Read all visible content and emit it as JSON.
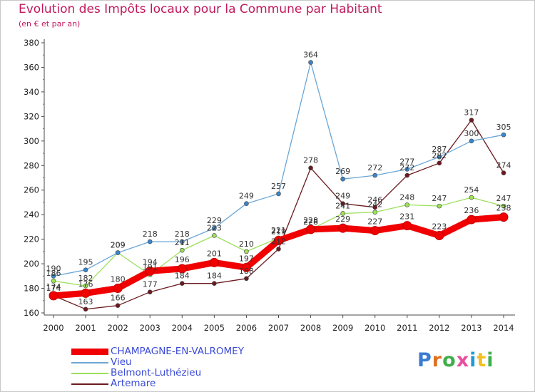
{
  "chart_data": {
    "type": "line",
    "title": "Evolution des Impôts locaux pour la Commune par Habitant",
    "subtitle": "(en € et par an)",
    "xlabel": "",
    "ylabel": "",
    "ylim": [
      160,
      380
    ],
    "yticks": [
      160,
      180,
      200,
      220,
      240,
      260,
      280,
      300,
      320,
      340,
      360,
      380
    ],
    "x": [
      "2000",
      "2001",
      "2002",
      "2003",
      "2004",
      "2005",
      "2006",
      "2007",
      "2008",
      "2009",
      "2010",
      "2011",
      "2012",
      "2013",
      "2014"
    ],
    "grid": false,
    "legend_position": "bottom-left",
    "series": [
      {
        "name": "Artemare",
        "color": "#6b1a1f",
        "marker_fill": "#6b1a1f",
        "width": 1.3,
        "values": [
          174,
          163,
          166,
          177,
          184,
          184,
          188,
          212,
          278,
          249,
          246,
          272,
          282,
          317,
          274
        ]
      },
      {
        "name": "Belmont-Luthézieu",
        "color": "#9be05b",
        "marker_fill": "#9be05b",
        "width": 1.3,
        "values": [
          186,
          182,
          209,
          191,
          211,
          223,
          210,
          221,
          228,
          241,
          242,
          248,
          247,
          254,
          247
        ]
      },
      {
        "name": "Vieu",
        "color": "#6aa6d6",
        "marker_fill": "#3a86c8",
        "width": 1.3,
        "values": [
          190,
          195,
          209,
          218,
          218,
          229,
          249,
          257,
          364,
          269,
          272,
          277,
          287,
          300,
          305
        ]
      },
      {
        "name": "CHAMPAGNE-EN-VALROMEY",
        "color": "#f00000",
        "marker_fill": "#f00000",
        "width": 9,
        "values": [
          174,
          176,
          180,
          194,
          196,
          201,
          197,
          219,
          228,
          229,
          227,
          231,
          223,
          236,
          238
        ]
      }
    ],
    "data_labels": {
      "Artemare": [
        "174",
        "163",
        "166",
        "177",
        "184",
        "184",
        "188",
        "212",
        "278",
        "249",
        "246",
        "272",
        "282",
        "317",
        "274"
      ],
      "Belmont-Luthézieu": [
        "186",
        "182",
        "209",
        "191",
        "211",
        "223",
        "210",
        "221",
        "228",
        "241",
        "242",
        "248",
        "247",
        "254",
        "247"
      ],
      "Vieu": [
        "190",
        "195",
        "209",
        "218",
        "218",
        "229",
        "249",
        "257",
        "364",
        "269",
        "272",
        "277",
        "287",
        "300",
        "305"
      ],
      "CHAMPAGNE-EN-VALROMEY": [
        "174",
        "176",
        "180",
        "194",
        "196",
        "201",
        "197",
        "219",
        "228",
        "229",
        "227",
        "231",
        "223",
        "236",
        "238"
      ]
    }
  },
  "legend": {
    "items": [
      {
        "label": "CHAMPAGNE-EN-VALROMEY",
        "color": "#f00000",
        "thickness": "thick"
      },
      {
        "label": "Vieu",
        "color": "#6aa6d6",
        "thickness": "thin"
      },
      {
        "label": "Belmont-Luthézieu",
        "color": "#9be05b",
        "thickness": "thin"
      },
      {
        "label": "Artemare",
        "color": "#6b1a1f",
        "thickness": "thin"
      }
    ]
  },
  "brand": {
    "text": "Proxiti",
    "letter_colors": [
      "#3a7bd5",
      "#e07020",
      "#3fae49",
      "#e94e9b",
      "#1f9bd7",
      "#f4c020",
      "#3fae49"
    ]
  },
  "colors": {
    "title": "#c2185b",
    "axis": "#4a4a4a",
    "tick_text": "#222222"
  }
}
